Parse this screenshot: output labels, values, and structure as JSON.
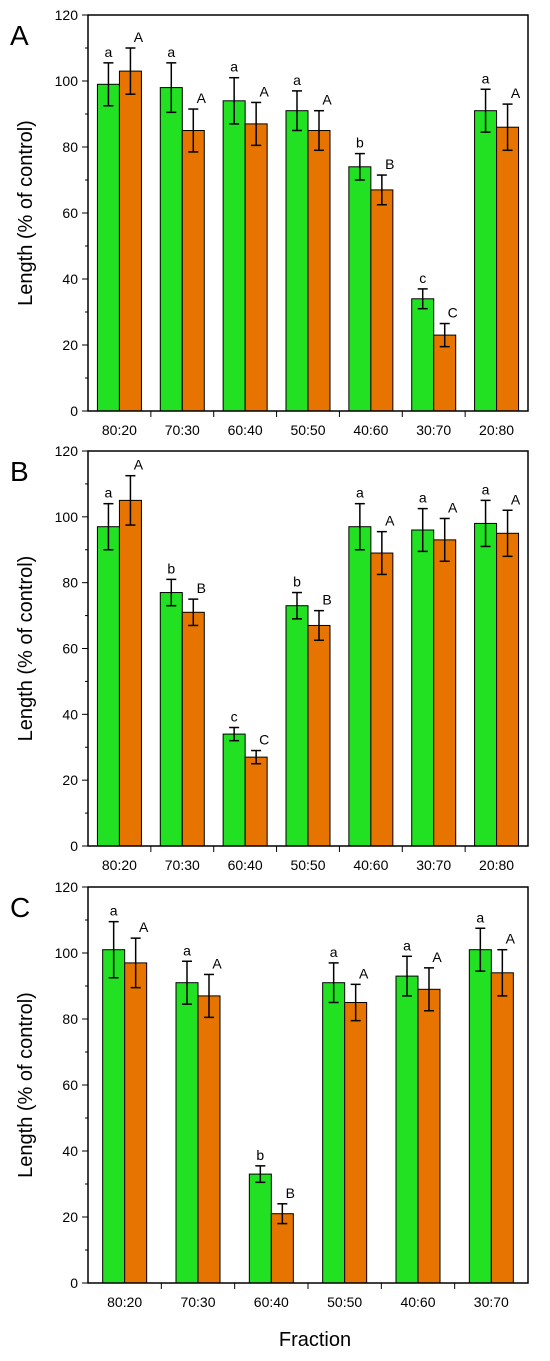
{
  "xlabel": "Fraction",
  "colors": {
    "series_green": "#22e022",
    "series_orange": "#e87400",
    "axis": "#000000"
  },
  "chart_data": [
    {
      "type": "bar",
      "panel_label": "A",
      "ylabel": "Length  (% of control)",
      "ylim": [
        0,
        120
      ],
      "yticks": [
        "0",
        "20",
        "40",
        "60",
        "80",
        "100",
        "120"
      ],
      "categories": [
        "80:20",
        "70:30",
        "60:40",
        "50:50",
        "40:60",
        "30:70",
        "20:80"
      ],
      "series": [
        {
          "values": [
            99,
            98,
            94,
            91,
            74,
            34,
            91
          ],
          "errors": [
            6.5,
            7.5,
            7,
            6,
            4,
            3,
            6.5
          ],
          "sig": [
            "a",
            "a",
            "a",
            "a",
            "b",
            "c",
            "a"
          ]
        },
        {
          "values": [
            103,
            85,
            87,
            85,
            67,
            23,
            86
          ],
          "errors": [
            7,
            6.5,
            6.5,
            6,
            4.5,
            3.5,
            7
          ],
          "sig": [
            "A",
            "A",
            "A",
            "A",
            "B",
            "C",
            "A"
          ]
        }
      ]
    },
    {
      "type": "bar",
      "panel_label": "B",
      "ylabel": "Length  (% of control)",
      "ylim": [
        0,
        120
      ],
      "yticks": [
        "0",
        "20",
        "40",
        "60",
        "80",
        "100",
        "120"
      ],
      "categories": [
        "80:20",
        "70:30",
        "60:40",
        "50:50",
        "40:60",
        "30:70",
        "20:80"
      ],
      "series": [
        {
          "values": [
            97,
            77,
            34,
            73,
            97,
            96,
            98
          ],
          "errors": [
            7,
            4,
            2,
            4,
            7,
            6.5,
            7
          ],
          "sig": [
            "a",
            "b",
            "c",
            "b",
            "a",
            "a",
            "a"
          ]
        },
        {
          "values": [
            105,
            71,
            27,
            67,
            89,
            93,
            95
          ],
          "errors": [
            7.5,
            4,
            2,
            4.5,
            6.5,
            6.5,
            7
          ],
          "sig": [
            "A",
            "B",
            "C",
            "B",
            "A",
            "A",
            "A"
          ]
        }
      ]
    },
    {
      "type": "bar",
      "panel_label": "C",
      "ylabel": "Length  (% of control)",
      "ylim": [
        0,
        120
      ],
      "yticks": [
        "0",
        "20",
        "40",
        "60",
        "80",
        "100",
        "120"
      ],
      "categories": [
        "80:20",
        "70:30",
        "60:40",
        "50:50",
        "40:60",
        "30:70"
      ],
      "series": [
        {
          "values": [
            101,
            91,
            33,
            91,
            93,
            101
          ],
          "errors": [
            8.5,
            6.5,
            2.5,
            6,
            6,
            6.5
          ],
          "sig": [
            "a",
            "a",
            "b",
            "a",
            "a",
            "a"
          ]
        },
        {
          "values": [
            97,
            87,
            21,
            85,
            89,
            94
          ],
          "errors": [
            7.5,
            6.5,
            3,
            5.5,
            6.5,
            7
          ],
          "sig": [
            "A",
            "A",
            "B",
            "A",
            "A",
            "A"
          ]
        }
      ]
    }
  ]
}
